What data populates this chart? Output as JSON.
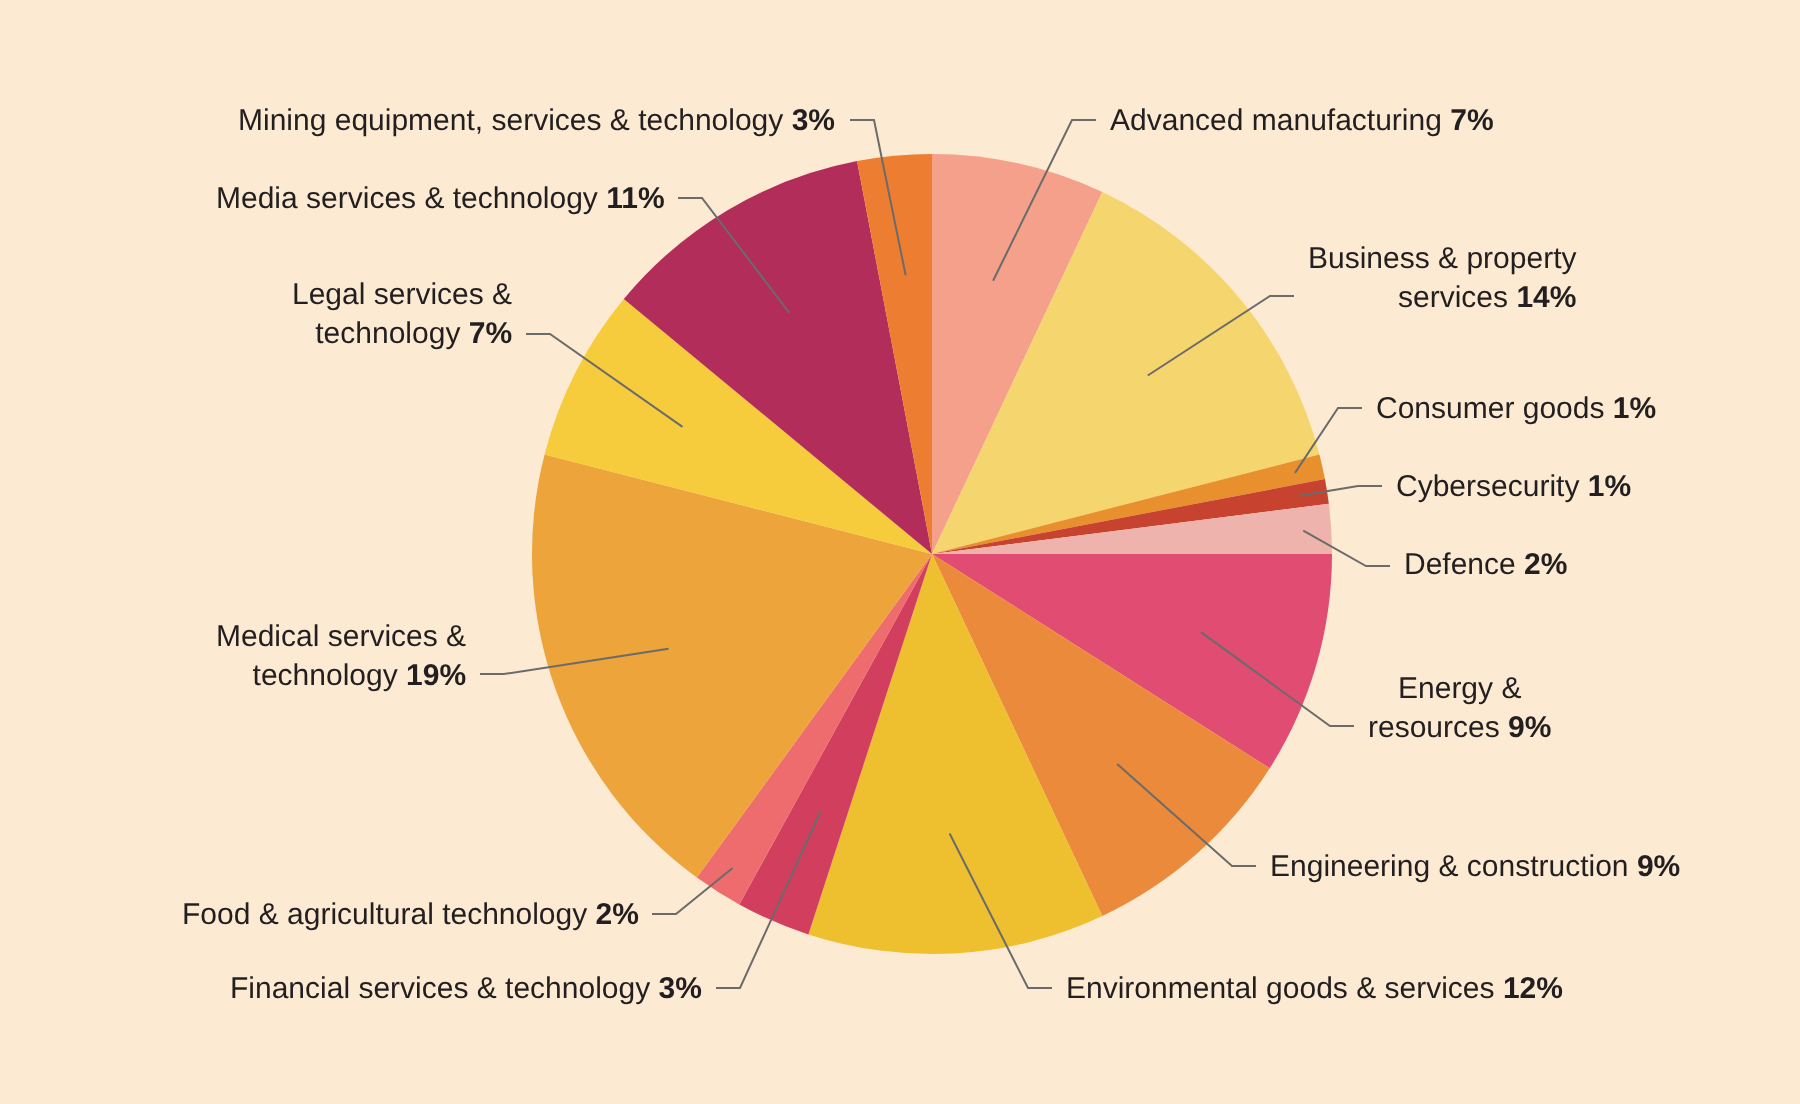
{
  "chart_data": {
    "type": "pie",
    "categories": [
      "Advanced manufacturing",
      "Business & property services",
      "Consumer goods",
      "Cybersecurity",
      "Defence",
      "Energy & resources",
      "Engineering & construction",
      "Environmental goods & services",
      "Financial services & technology",
      "Food & agricultural technology",
      "Medical services & technology",
      "Legal services & technology",
      "Media services & technology",
      "Mining equipment, services & technology"
    ],
    "values": [
      7,
      14,
      1,
      1,
      2,
      9,
      9,
      12,
      3,
      2,
      19,
      7,
      11,
      3
    ],
    "value_labels": [
      "7%",
      "14%",
      "1%",
      "1%",
      "2%",
      "9%",
      "9%",
      "12%",
      "3%",
      "2%",
      "19%",
      "7%",
      "11%",
      "3%"
    ],
    "colors": [
      "#f4a08a",
      "#f5d56e",
      "#e8902e",
      "#c8432f",
      "#eeb3ad",
      "#e04c72",
      "#ea8a3a",
      "#eebf2e",
      "#d23e5e",
      "#ee6b6e",
      "#eca43b",
      "#f6cb3c",
      "#b32d5a",
      "#ed7d31"
    ],
    "legend": false
  }
}
